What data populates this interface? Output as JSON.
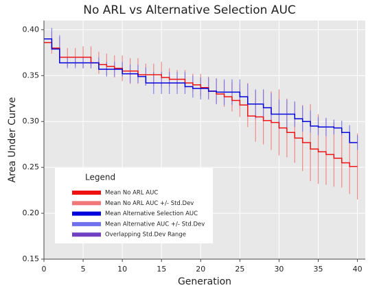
{
  "chart_data": {
    "type": "step-errorbar",
    "title": "No ARL vs Alternative Selection AUC",
    "x_label": "Generation",
    "y_label": "Area Under Curve",
    "legend_title": "Legend",
    "x": [
      1,
      2,
      3,
      4,
      5,
      6,
      7,
      8,
      9,
      10,
      11,
      12,
      13,
      14,
      15,
      16,
      17,
      18,
      19,
      20,
      21,
      22,
      23,
      24,
      25,
      26,
      27,
      28,
      29,
      30,
      31,
      32,
      33,
      34,
      35,
      36,
      37,
      38,
      39,
      40
    ],
    "series": [
      {
        "name": "Mean No ARL AUC",
        "color": "#ee1111",
        "std_name": "Mean No ARL AUC +/- Std.Dev",
        "std_color": "#f07878",
        "values": [
          0.386,
          0.38,
          0.37,
          0.37,
          0.37,
          0.37,
          0.364,
          0.362,
          0.36,
          0.358,
          0.355,
          0.355,
          0.351,
          0.351,
          0.351,
          0.348,
          0.346,
          0.346,
          0.342,
          0.34,
          0.337,
          0.333,
          0.33,
          0.327,
          0.323,
          0.318,
          0.306,
          0.305,
          0.301,
          0.299,
          0.293,
          0.288,
          0.282,
          0.277,
          0.27,
          0.267,
          0.264,
          0.26,
          0.255,
          0.251
        ],
        "std": [
          0.012,
          0.012,
          0.01,
          0.01,
          0.012,
          0.012,
          0.012,
          0.012,
          0.012,
          0.014,
          0.014,
          0.014,
          0.012,
          0.012,
          0.014,
          0.01,
          0.01,
          0.01,
          0.01,
          0.012,
          0.012,
          0.014,
          0.014,
          0.016,
          0.018,
          0.024,
          0.028,
          0.03,
          0.032,
          0.036,
          0.032,
          0.033,
          0.036,
          0.042,
          0.038,
          0.036,
          0.035,
          0.032,
          0.034,
          0.036
        ]
      },
      {
        "name": "Mean Alternative Selection AUC",
        "color": "#0000dd",
        "std_name": "Mean Alternative AUC +/- Std.Dev",
        "std_color": "#7070ee",
        "values": [
          0.39,
          0.379,
          0.364,
          0.364,
          0.364,
          0.364,
          0.364,
          0.357,
          0.357,
          0.357,
          0.352,
          0.352,
          0.349,
          0.342,
          0.342,
          0.342,
          0.342,
          0.342,
          0.338,
          0.336,
          0.336,
          0.333,
          0.332,
          0.332,
          0.332,
          0.327,
          0.319,
          0.319,
          0.315,
          0.308,
          0.308,
          0.308,
          0.303,
          0.3,
          0.295,
          0.294,
          0.294,
          0.293,
          0.288,
          0.277
        ],
        "std": [
          0.012,
          0.015,
          0.006,
          0.006,
          0.006,
          0.006,
          0.006,
          0.008,
          0.008,
          0.008,
          0.01,
          0.01,
          0.01,
          0.012,
          0.012,
          0.012,
          0.012,
          0.012,
          0.012,
          0.012,
          0.012,
          0.014,
          0.014,
          0.014,
          0.014,
          0.014,
          0.016,
          0.016,
          0.016,
          0.016,
          0.016,
          0.014,
          0.014,
          0.012,
          0.01,
          0.01,
          0.008,
          0.008,
          0.008,
          0.008
        ]
      }
    ],
    "overlap_label": "Overlapping Std.Dev Range",
    "overlap_color": "#7040c0",
    "xlim": [
      0,
      41
    ],
    "ylim": [
      0.15,
      0.41
    ],
    "xticks": [
      0,
      5,
      10,
      15,
      20,
      25,
      30,
      35,
      40
    ],
    "yticks": [
      0.15,
      {
        "value": 0.2,
        "label": "0.20"
      },
      0.25,
      {
        "value": 0.3,
        "label": "0.30"
      },
      0.35,
      {
        "value": 0.4,
        "label": "0.40"
      }
    ],
    "grid": true
  }
}
